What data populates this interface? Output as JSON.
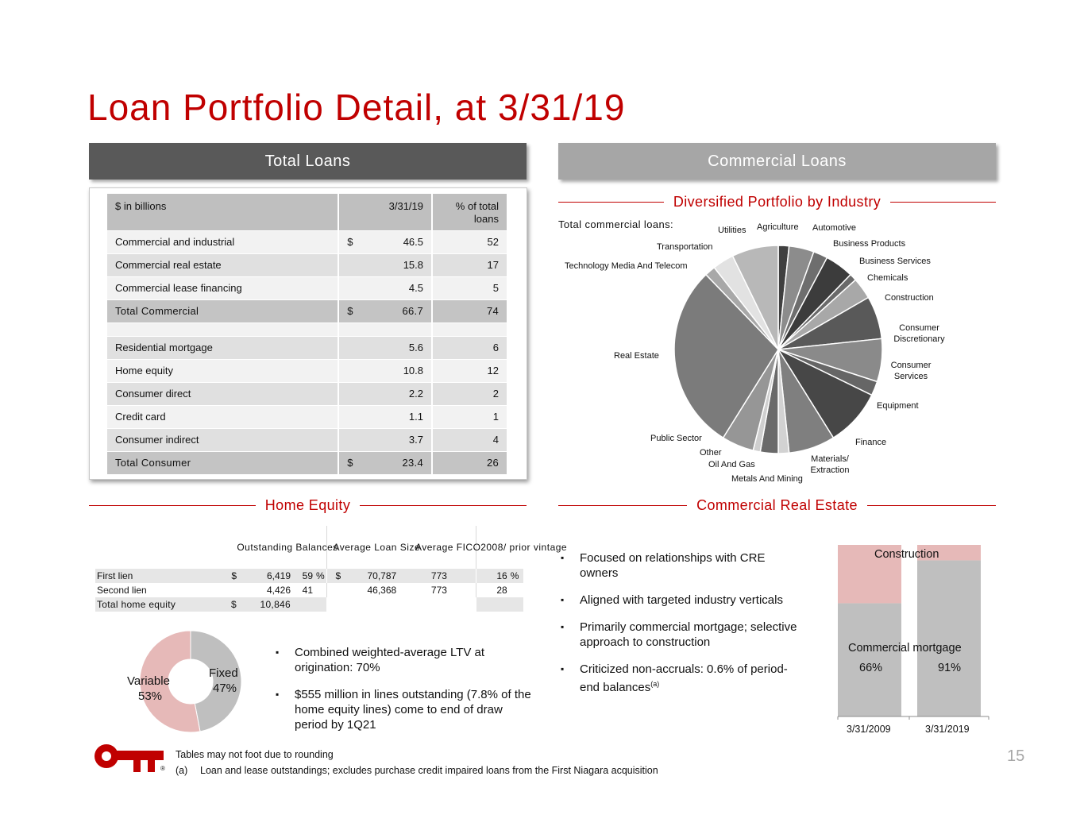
{
  "title": "Loan Portfolio Detail, at 3/31/19",
  "banners": {
    "total_loans": "Total Loans",
    "commercial_loans": "Commercial Loans"
  },
  "total_loans_table": {
    "headers": [
      "$ in billions",
      "3/31/19",
      "% of total loans"
    ],
    "rows": [
      {
        "label": "Commercial and industrial",
        "currency": "$",
        "value": "46.5",
        "pct": "52"
      },
      {
        "label": "Commercial real estate",
        "currency": "",
        "value": "15.8",
        "pct": "17"
      },
      {
        "label": "Commercial lease financing",
        "currency": "",
        "value": "4.5",
        "pct": "5"
      },
      {
        "label": "Total Commercial",
        "currency": "$",
        "value": "66.7",
        "pct": "74"
      },
      {
        "label": "Residential mortgage",
        "currency": "",
        "value": "5.6",
        "pct": "6"
      },
      {
        "label": "Home equity",
        "currency": "",
        "value": "10.8",
        "pct": "12"
      },
      {
        "label": "Consumer direct",
        "currency": "",
        "value": "2.2",
        "pct": "2"
      },
      {
        "label": "Credit card",
        "currency": "",
        "value": "1.1",
        "pct": "1"
      },
      {
        "label": "Consumer indirect",
        "currency": "",
        "value": "3.7",
        "pct": "4"
      },
      {
        "label": "Total Consumer",
        "currency": "$",
        "value": "23.4",
        "pct": "26"
      }
    ]
  },
  "diversified": {
    "heading": "Diversified Portfolio by Industry",
    "subtitle": "Total commercial loans:",
    "labels": {
      "utilities": "Utilities",
      "agriculture": "Agriculture",
      "automotive": "Automotive",
      "transportation": "Transportation",
      "business_products": "Business Products",
      "tmt": "Technology Media And Telecom",
      "business_services": "Business Services",
      "chemicals": "Chemicals",
      "construction": "Construction",
      "consumer_discretionary": "Consumer Discretionary",
      "real_estate": "Real Estate",
      "consumer_services": "Consumer Services",
      "equipment": "Equipment",
      "public_sector": "Public Sector",
      "finance": "Finance",
      "other": "Other",
      "materials": "Materials/ Extraction",
      "oil_gas": "Oil And Gas",
      "metals_mining": "Metals And Mining"
    }
  },
  "chart_data": [
    {
      "type": "pie",
      "title": "Diversified Portfolio by Industry",
      "categories": [
        "Agriculture",
        "Automotive",
        "Business Products",
        "Business Services",
        "Chemicals",
        "Construction",
        "Consumer Discretionary",
        "Consumer Services",
        "Equipment",
        "Finance",
        "Materials/ Extraction",
        "Metals And Mining",
        "Oil And Gas",
        "Other",
        "Public Sector",
        "Real Estate",
        "Technology Media And Telecom",
        "Transportation",
        "Utilities"
      ],
      "values": [
        1.5,
        3.5,
        2.0,
        4.0,
        1.0,
        3.0,
        6.0,
        6.0,
        2.0,
        8.0,
        6.5,
        1.5,
        2.5,
        1.0,
        4.5,
        26.0,
        1.5,
        3.0,
        6.5
      ],
      "colors": [
        "#404040",
        "#8c8c8c",
        "#6e6e6e",
        "#3c3c3c",
        "#6a6a6a",
        "#a8a8a8",
        "#595959",
        "#8a8a8a",
        "#666666",
        "#474747",
        "#7f7f7f",
        "#d2d2d2",
        "#6a6a6a",
        "#cfcfcf",
        "#969696",
        "#7b7b7b",
        "#a8a8a8",
        "#e2e2e2",
        "#b8b8b8"
      ]
    },
    {
      "type": "pie",
      "title": "Home equity lien mix",
      "categories": [
        "Fixed",
        "Variable"
      ],
      "values": [
        47,
        53
      ],
      "colors": [
        "#bfbfbf",
        "#e6b9b8"
      ]
    },
    {
      "type": "bar",
      "title": "Commercial Real Estate mix",
      "categories": [
        "3/31/2009",
        "3/31/2019"
      ],
      "series": [
        {
          "name": "Commercial mortgage",
          "values": [
            66,
            91
          ],
          "color": "#bfbfbf"
        },
        {
          "name": "Construction",
          "values": [
            34,
            9
          ],
          "color": "#e6b9b8"
        }
      ],
      "ylim": [
        0,
        100
      ]
    }
  ],
  "home_equity": {
    "heading": "Home Equity",
    "headers": {
      "outstanding": "Outstanding Balances",
      "avg_loan": "Average Loan Size",
      "avg_fico": "Average FICO",
      "vintage": "2008/ prior vintage"
    },
    "rows": [
      {
        "label": "First lien",
        "cur1": "$",
        "balance": "6,419",
        "pct": "59",
        "pctsign": "%",
        "cur2": "$",
        "avg_loan": "70,787",
        "fico": "773",
        "vintage": "16",
        "vsign": "%"
      },
      {
        "label": "Second lien",
        "cur1": "",
        "balance": "4,426",
        "pct": "41",
        "pctsign": "",
        "cur2": "",
        "avg_loan": "46,368",
        "fico": "773",
        "vintage": "28",
        "vsign": ""
      },
      {
        "label": "Total home equity",
        "cur1": "$",
        "balance": "10,846",
        "pct": "",
        "pctsign": "",
        "cur2": "",
        "avg_loan": "",
        "fico": "",
        "vintage": "",
        "vsign": ""
      }
    ],
    "donut": {
      "fixed_label": "Fixed",
      "fixed_pct": "47%",
      "variable_label": "Variable",
      "variable_pct": "53%"
    },
    "bullets": [
      "Combined weighted-average LTV at origination: 70%",
      "$555 million in lines outstanding (7.8% of the home equity lines) come to end of draw period by 1Q21"
    ]
  },
  "cre": {
    "heading": "Commercial Real Estate",
    "bullets": [
      "Focused on relationships with CRE owners",
      "Aligned with targeted industry verticals",
      "Primarily commercial mortgage; selective approach to construction"
    ],
    "bullet4_main": "Criticized non-accruals: 0.6% of period-end balances",
    "bullet4_sup": "(a)",
    "chart": {
      "construction_label": "Construction",
      "mortgage_label": "Commercial mortgage",
      "pct_2009": "66%",
      "pct_2019": "91%",
      "x_2009": "3/31/2009",
      "x_2019": "3/31/2019"
    }
  },
  "footer": {
    "note1": "Tables may not foot due to rounding",
    "note2_marker": "(a)",
    "note2": "Loan and lease outstandings; excludes purchase credit impaired loans from the First Niagara acquisition",
    "page": "15",
    "logo_mark": "®"
  },
  "colors": {
    "accent": "#c00000",
    "banner_dark": "#595959",
    "banner_light": "#a6a6a6",
    "pink": "#e6b9b8",
    "grey": "#bfbfbf"
  }
}
